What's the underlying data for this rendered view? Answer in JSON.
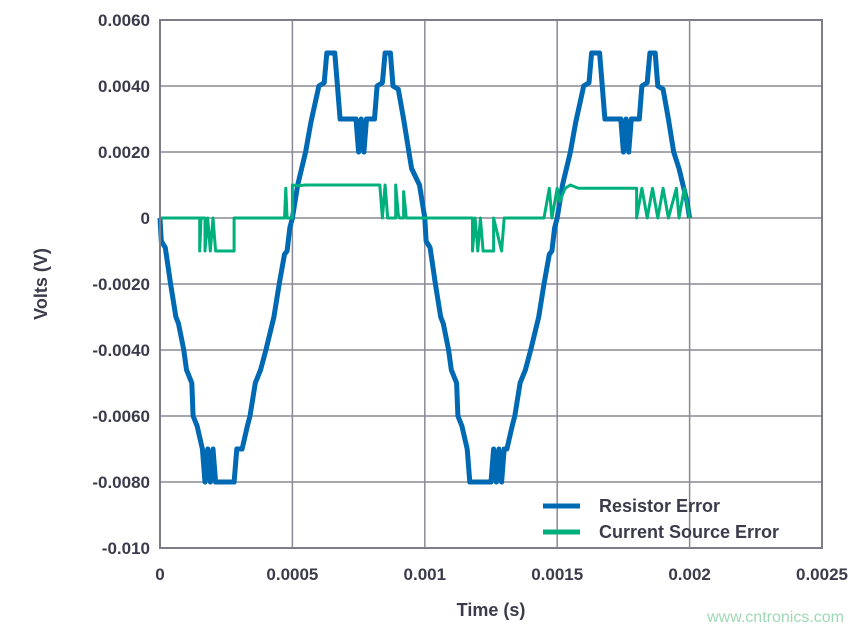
{
  "chart_data": {
    "type": "line",
    "xlabel": "Time (s)",
    "ylabel": "Volts (V)",
    "xlim": [
      0,
      0.0025
    ],
    "ylim": [
      -0.01,
      0.006
    ],
    "grid": true,
    "legend_placement": "bottom-right",
    "x_ticks": [
      "0",
      "0.0005",
      "0.001",
      "0.0015",
      "0.002",
      "0.0025"
    ],
    "x_tick_values": [
      0,
      0.0005,
      0.001,
      0.0015,
      0.002,
      0.0025
    ],
    "y_ticks": [
      "0.0060",
      "0.0040",
      "0.0020",
      "0",
      "-0.0020",
      "-0.0040",
      "-0.0060",
      "-0.0080",
      "-0.010"
    ],
    "y_tick_values": [
      0.006,
      0.004,
      0.002,
      0,
      -0.002,
      -0.004,
      -0.006,
      -0.008,
      -0.01
    ],
    "series": [
      {
        "name": "Resistor Error",
        "color": "#0069b4",
        "points": [
          [
            0,
            0
          ],
          [
            5e-06,
            -0.0007
          ],
          [
            2e-05,
            -0.0009
          ],
          [
            4e-05,
            -0.002
          ],
          [
            6e-05,
            -0.003
          ],
          [
            7e-05,
            -0.0032
          ],
          [
            9e-05,
            -0.004
          ],
          [
            0.0001,
            -0.0046
          ],
          [
            0.00012,
            -0.005
          ],
          [
            0.000125,
            -0.006
          ],
          [
            0.00014,
            -0.0063
          ],
          [
            0.00016,
            -0.007
          ],
          [
            0.00017,
            -0.008
          ],
          [
            0.00018,
            -0.007
          ],
          [
            0.00019,
            -0.008
          ],
          [
            0.0002,
            -0.007
          ],
          [
            0.00021,
            -0.008
          ],
          [
            0.00028,
            -0.008
          ],
          [
            0.00029,
            -0.007
          ],
          [
            0.00031,
            -0.007
          ],
          [
            0.00033,
            -0.0063
          ],
          [
            0.00034,
            -0.006
          ],
          [
            0.00036,
            -0.005
          ],
          [
            0.00038,
            -0.0046
          ],
          [
            0.0004,
            -0.004
          ],
          [
            0.00043,
            -0.003
          ],
          [
            0.00045,
            -0.002
          ],
          [
            0.00047,
            -0.0011
          ],
          [
            0.00048,
            -0.001
          ],
          [
            0.00049,
            -0.0003
          ],
          [
            0.0005,
            0
          ],
          [
            0.00052,
            0.001
          ],
          [
            0.00055,
            0.002
          ],
          [
            0.00057,
            0.0029
          ],
          [
            0.0006,
            0.004
          ],
          [
            0.00062,
            0.0041
          ],
          [
            0.00063,
            0.005
          ],
          [
            0.00066,
            0.005
          ],
          [
            0.00068,
            0.003
          ],
          [
            0.00074,
            0.003
          ],
          [
            0.00075,
            0.002
          ],
          [
            0.00076,
            0.003
          ],
          [
            0.00077,
            0.002
          ],
          [
            0.00078,
            0.003
          ],
          [
            0.00081,
            0.003
          ],
          [
            0.00082,
            0.004
          ],
          [
            0.00084,
            0.0041
          ],
          [
            0.00085,
            0.005
          ],
          [
            0.00087,
            0.005
          ],
          [
            0.00088,
            0.004
          ],
          [
            0.0009,
            0.0039
          ],
          [
            0.00092,
            0.003
          ],
          [
            0.00094,
            0.002
          ],
          [
            0.00095,
            0.0015
          ],
          [
            0.00098,
            0.001
          ],
          [
            0.001,
            0
          ],
          [
            0.001005,
            -0.0007
          ],
          [
            0.00102,
            -0.0009
          ],
          [
            0.00104,
            -0.002
          ],
          [
            0.00106,
            -0.003
          ],
          [
            0.00107,
            -0.0032
          ],
          [
            0.00109,
            -0.004
          ],
          [
            0.0011,
            -0.0046
          ],
          [
            0.00112,
            -0.005
          ],
          [
            0.001125,
            -0.006
          ],
          [
            0.00114,
            -0.0063
          ],
          [
            0.00116,
            -0.007
          ],
          [
            0.00117,
            -0.008
          ],
          [
            0.00125,
            -0.008
          ],
          [
            0.00126,
            -0.007
          ],
          [
            0.00127,
            -0.008
          ],
          [
            0.00128,
            -0.007
          ],
          [
            0.00129,
            -0.008
          ],
          [
            0.0013,
            -0.007
          ],
          [
            0.00131,
            -0.007
          ],
          [
            0.00133,
            -0.0063
          ],
          [
            0.00134,
            -0.006
          ],
          [
            0.00136,
            -0.005
          ],
          [
            0.00138,
            -0.0046
          ],
          [
            0.0014,
            -0.004
          ],
          [
            0.00143,
            -0.003
          ],
          [
            0.00145,
            -0.002
          ],
          [
            0.00147,
            -0.0011
          ],
          [
            0.00148,
            -0.001
          ],
          [
            0.00149,
            -0.0003
          ],
          [
            0.0015,
            0
          ],
          [
            0.00152,
            0.001
          ],
          [
            0.00155,
            0.002
          ],
          [
            0.00157,
            0.0029
          ],
          [
            0.0016,
            0.004
          ],
          [
            0.00162,
            0.0041
          ],
          [
            0.00163,
            0.005
          ],
          [
            0.00166,
            0.005
          ],
          [
            0.00168,
            0.003
          ],
          [
            0.00174,
            0.003
          ],
          [
            0.00175,
            0.002
          ],
          [
            0.00176,
            0.003
          ],
          [
            0.00177,
            0.002
          ],
          [
            0.00178,
            0.003
          ],
          [
            0.00181,
            0.003
          ],
          [
            0.00182,
            0.004
          ],
          [
            0.00184,
            0.0041
          ],
          [
            0.00185,
            0.005
          ],
          [
            0.00187,
            0.005
          ],
          [
            0.00188,
            0.004
          ],
          [
            0.0019,
            0.0039
          ],
          [
            0.00192,
            0.003
          ],
          [
            0.00194,
            0.002
          ],
          [
            0.00196,
            0.0015
          ],
          [
            0.00199,
            0.0005
          ],
          [
            0.002,
            0
          ]
        ]
      },
      {
        "name": "Current Source Error",
        "color": "#00b07c",
        "points": [
          [
            0,
            0
          ],
          [
            0.00015,
            0
          ],
          [
            0.00015,
            -0.001
          ],
          [
            0.000155,
            0
          ],
          [
            0.00017,
            0
          ],
          [
            0.00017,
            -0.001
          ],
          [
            0.00018,
            0
          ],
          [
            0.00019,
            -0.001
          ],
          [
            0.0002,
            0
          ],
          [
            0.00021,
            -0.001
          ],
          [
            0.00028,
            -0.001
          ],
          [
            0.00028,
            0
          ],
          [
            0.00047,
            0
          ],
          [
            0.000475,
            0.0009
          ],
          [
            0.00048,
            0
          ],
          [
            0.0005,
            0
          ],
          [
            0.0005,
            0.001
          ],
          [
            0.00052,
            0.00098
          ],
          [
            0.00055,
            0.001
          ],
          [
            0.00083,
            0.001
          ],
          [
            0.00084,
            0
          ],
          [
            0.00085,
            0.001
          ],
          [
            0.00086,
            0
          ],
          [
            0.00089,
            0
          ],
          [
            0.00089,
            0.001
          ],
          [
            0.0009,
            0.0001
          ],
          [
            0.000905,
            0
          ],
          [
            0.00092,
            0
          ],
          [
            0.00092,
            0.0008
          ],
          [
            0.00093,
            0
          ],
          [
            0.00118,
            0
          ],
          [
            0.00118,
            -0.001
          ],
          [
            0.00119,
            0
          ],
          [
            0.0012,
            -0.001
          ],
          [
            0.00121,
            0
          ],
          [
            0.00122,
            -0.001
          ],
          [
            0.00126,
            -0.001
          ],
          [
            0.00126,
            0
          ],
          [
            0.00129,
            -0.001
          ],
          [
            0.0013,
            0
          ],
          [
            0.00145,
            0
          ],
          [
            0.00147,
            0.0009
          ],
          [
            0.00148,
            0
          ],
          [
            0.0015,
            0.0009
          ],
          [
            0.00151,
            0.0005
          ],
          [
            0.00153,
            0.0009
          ],
          [
            0.00155,
            0.001
          ],
          [
            0.00158,
            0.0009
          ],
          [
            0.0018,
            0.0009
          ],
          [
            0.0018,
            0
          ],
          [
            0.00182,
            0.0009
          ],
          [
            0.00184,
            0
          ],
          [
            0.00186,
            0.0009
          ],
          [
            0.00188,
            0
          ],
          [
            0.0019,
            0.0009
          ],
          [
            0.00192,
            0
          ],
          [
            0.00195,
            0.0009
          ],
          [
            0.00196,
            0
          ],
          [
            0.00198,
            0.0009
          ],
          [
            0.002,
            0
          ]
        ]
      }
    ]
  },
  "watermark": "www.cntronics.com"
}
